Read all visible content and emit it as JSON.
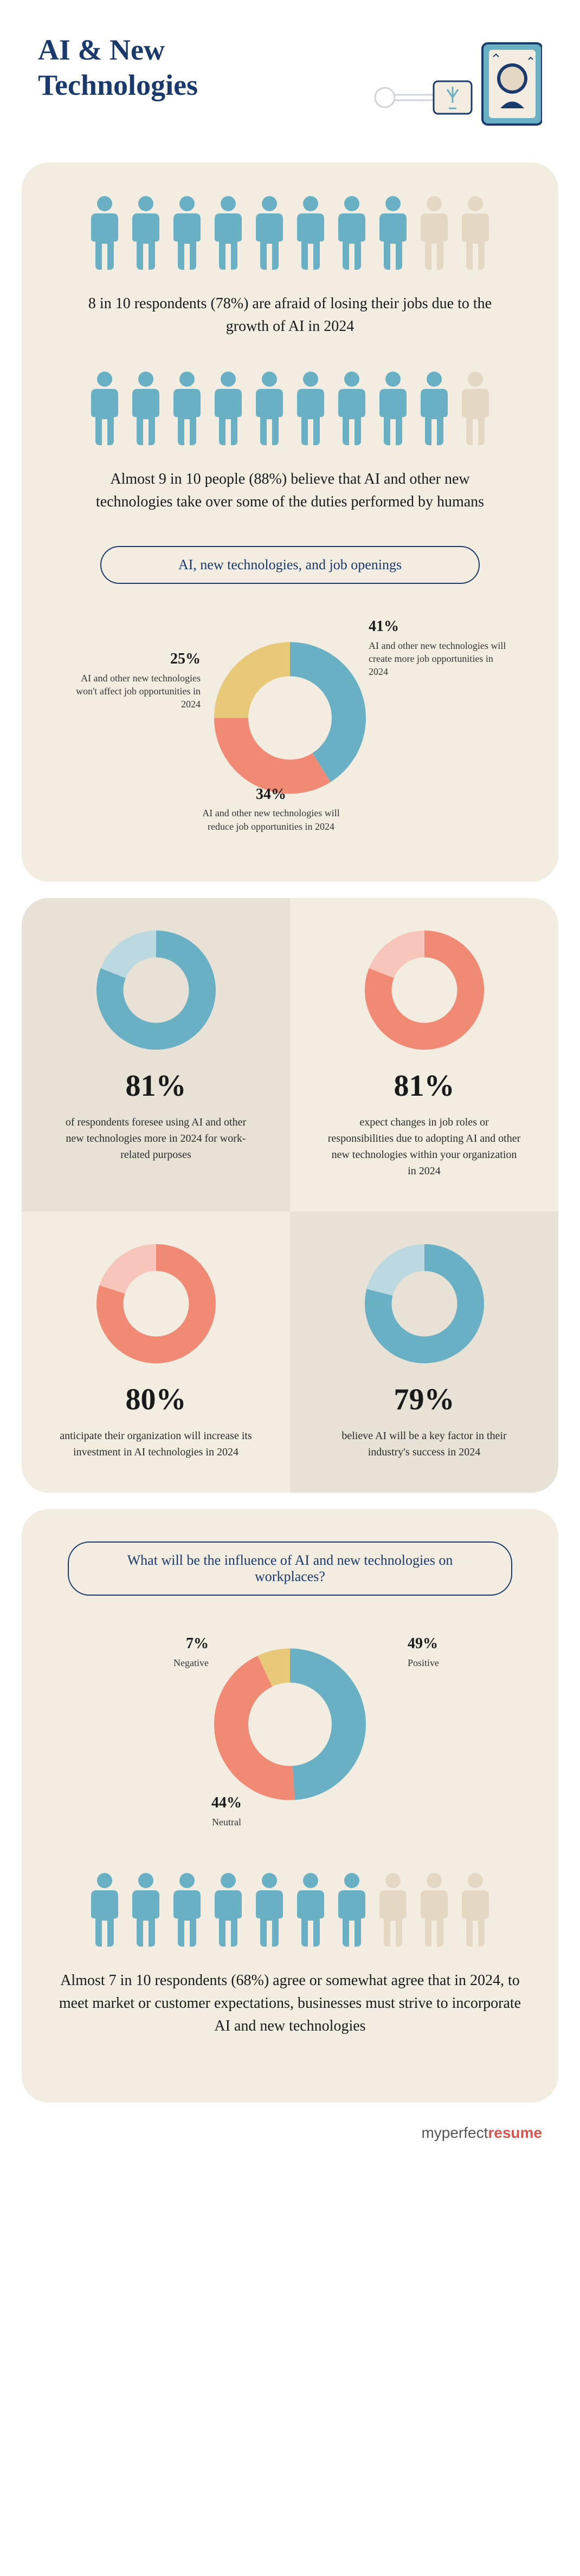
{
  "title": "AI & New\nTechnologies",
  "colors": {
    "navy": "#1a3a6e",
    "teal": "#6ab0c4",
    "coral": "#f08a75",
    "sand": "#e8c97a",
    "cream": "#f3ece1",
    "cream_dark": "#e8e1d5",
    "beige_person": "#e4d8c4",
    "text": "#1a1a1a"
  },
  "section1": {
    "row1": {
      "filled": 8,
      "total": 10,
      "fill_color": "#6ab0c4",
      "empty_color": "#e4d8c4"
    },
    "text1": "8 in 10 respondents (78%) are afraid of losing their jobs due to the growth of AI in 2024",
    "row2": {
      "filled": 9,
      "total": 10,
      "fill_color": "#6ab0c4",
      "empty_color": "#e4d8c4"
    },
    "text2": "Almost 9 in 10 people (88%) believe that AI and other new technologies take over some of the duties performed by humans",
    "pill": "AI, new technologies, and job openings",
    "donut": {
      "type": "donut",
      "inner_ratio": 0.55,
      "slices": [
        {
          "label": "AI and other new technologies will create more job opportunities in 2024",
          "pct": 41,
          "color": "#6ab0c4"
        },
        {
          "label": "AI and other new technologies will reduce job opportunities in 2024",
          "pct": 34,
          "color": "#f08a75"
        },
        {
          "label": "AI and other new technologies won't affect job opportunities in 2024",
          "pct": 25,
          "color": "#e8c97a"
        }
      ]
    }
  },
  "grid": [
    {
      "pct": 81,
      "fill_color": "#6ab0c4",
      "rest_color": "#bcd9e2",
      "text": "of respondents foresee using AI and other new technologies more in 2024 for work-related purposes",
      "bg": "a"
    },
    {
      "pct": 81,
      "fill_color": "#f08a75",
      "rest_color": "#f8c5ba",
      "text": "expect changes in job roles or responsibilities due to adopting AI and other new technologies within your organization in 2024",
      "bg": "b"
    },
    {
      "pct": 80,
      "fill_color": "#f08a75",
      "rest_color": "#f8c5ba",
      "text": "anticipate their organization will increase its investment in AI technologies in 2024",
      "bg": "b"
    },
    {
      "pct": 79,
      "fill_color": "#6ab0c4",
      "rest_color": "#bcd9e2",
      "text": "believe AI will be a key factor in their industry's success in 2024",
      "bg": "a"
    }
  ],
  "section3": {
    "pill": "What will be the influence of AI and new technologies on workplaces?",
    "donut": {
      "type": "donut",
      "inner_ratio": 0.55,
      "slices": [
        {
          "label": "Positive",
          "pct": 49,
          "color": "#6ab0c4"
        },
        {
          "label": "Neutral",
          "pct": 44,
          "color": "#f08a75"
        },
        {
          "label": "Negative",
          "pct": 7,
          "color": "#e8c97a"
        }
      ]
    },
    "row": {
      "filled": 7,
      "total": 10,
      "fill_color": "#6ab0c4",
      "empty_color": "#e4d8c4"
    },
    "text": "Almost 7 in 10 respondents (68%) agree or somewhat agree that in 2024, to meet market or customer expectations, businesses must strive to incorporate AI and new technologies"
  },
  "footer": {
    "part1": "myperfect",
    "part2": "resume"
  },
  "person_svg": {
    "width": 58,
    "height": 140
  },
  "donut_sizes": {
    "main": 280,
    "grid": 220
  }
}
